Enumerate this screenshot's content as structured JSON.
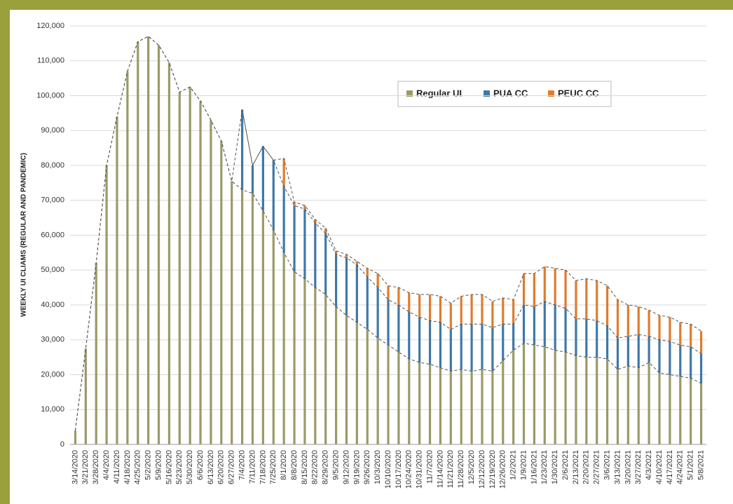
{
  "chart_data": {
    "type": "stacked-bar",
    "y_label": "WEEKLY UI CLIAMS (REGULAR AND PANDEMIC)",
    "categories": [
      "3/14/2020",
      "3/21/2020",
      "3/28/2020",
      "4/4/2020",
      "4/11/2020",
      "4/18/2020",
      "4/25/2020",
      "5/2/2020",
      "5/9/2020",
      "5/16/2020",
      "5/23/2020",
      "5/30/2020",
      "6/6/2020",
      "6/13/2020",
      "6/20/2020",
      "6/27/2020",
      "7/4/2020",
      "7/11/2020",
      "7/18/2020",
      "7/25/2020",
      "8/1/2020",
      "8/8/2020",
      "8/15/2020",
      "8/22/2020",
      "8/29/2020",
      "9/5/2020",
      "9/12/2020",
      "9/19/2020",
      "9/26/2020",
      "10/3/2020",
      "10/10/2020",
      "10/17/2020",
      "10/24/2020",
      "10/31/2020",
      "11/7/2020",
      "11/14/2020",
      "11/21/2020",
      "11/28/2020",
      "12/5/2020",
      "12/12/2020",
      "12/19/2020",
      "12/26/2020",
      "1/2/2021",
      "1/9/2021",
      "1/16/2021",
      "1/23/2021",
      "1/30/2021",
      "2/6/2021",
      "2/13/2021",
      "2/20/2021",
      "2/27/2021",
      "3/6/2021",
      "3/13/2021",
      "3/20/2021",
      "3/27/2021",
      "4/3/2021",
      "4/10/2021",
      "4/17/2021",
      "4/24/2021",
      "5/1/2021",
      "5/8/2021"
    ],
    "series": [
      {
        "name": "Regular UI",
        "color": "#9b9a68",
        "values": [
          4000,
          27500,
          52000,
          80000,
          94000,
          107000,
          115500,
          117000,
          114500,
          109500,
          101000,
          102500,
          98500,
          93000,
          87000,
          75500,
          73000,
          72000,
          67000,
          61500,
          55000,
          49500,
          47500,
          45000,
          43000,
          39500,
          37000,
          35000,
          33000,
          30500,
          28500,
          26500,
          24500,
          23500,
          23000,
          22000,
          21000,
          21500,
          21000,
          21500,
          21000,
          24000,
          27000,
          29000,
          28500,
          28000,
          27000,
          26500,
          25500,
          25000,
          25000,
          24500,
          21500,
          22500,
          22000,
          23500,
          20500,
          20000,
          19500,
          19000,
          17500
        ]
      },
      {
        "name": "PUA CC",
        "color": "#3e78a8",
        "values": [
          0,
          0,
          0,
          0,
          0,
          0,
          0,
          0,
          0,
          0,
          0,
          0,
          0,
          0,
          0,
          0,
          23000,
          8000,
          18500,
          20000,
          19000,
          19000,
          20000,
          18500,
          17500,
          15000,
          16500,
          16500,
          15000,
          14500,
          13000,
          13500,
          13500,
          13000,
          12500,
          13000,
          12000,
          13000,
          13500,
          13000,
          12500,
          10500,
          7500,
          11000,
          11000,
          13000,
          13000,
          12500,
          10500,
          11000,
          10500,
          9500,
          9000,
          8500,
          9500,
          7500,
          9500,
          9500,
          9000,
          9000,
          8500
        ]
      },
      {
        "name": "PEUC CC",
        "color": "#e07b2c",
        "values": [
          0,
          0,
          0,
          0,
          0,
          0,
          0,
          0,
          0,
          0,
          0,
          0,
          0,
          0,
          0,
          0,
          0,
          0,
          0,
          0,
          8000,
          1000,
          1000,
          1000,
          1500,
          1000,
          1000,
          1000,
          2500,
          4000,
          4000,
          5000,
          5500,
          6500,
          7500,
          7500,
          7500,
          8000,
          8500,
          8500,
          7500,
          7500,
          7000,
          9000,
          9500,
          10000,
          10500,
          11000,
          11000,
          11500,
          11500,
          11500,
          11000,
          9000,
          8000,
          7500,
          7000,
          7000,
          6500,
          6500,
          6500
        ]
      }
    ],
    "ylim": [
      0,
      120000
    ],
    "yticks": [
      0,
      {
        "value": 10000,
        "label": "10,000"
      },
      {
        "value": 20000,
        "label": "20,000"
      },
      {
        "value": 30000,
        "label": "30,000"
      },
      {
        "value": 40000,
        "label": "40,000"
      },
      {
        "value": 50000,
        "label": "50,000"
      },
      {
        "value": 60000,
        "label": "60,000"
      },
      {
        "value": 70000,
        "label": "70,000"
      },
      {
        "value": 80000,
        "label": "80,000"
      },
      {
        "value": 90000,
        "label": "90,000"
      },
      {
        "value": 100000,
        "label": "100,000"
      },
      {
        "value": 110000,
        "label": "110,000"
      },
      {
        "value": 120000,
        "label": "120,000"
      }
    ],
    "grid": true
  }
}
